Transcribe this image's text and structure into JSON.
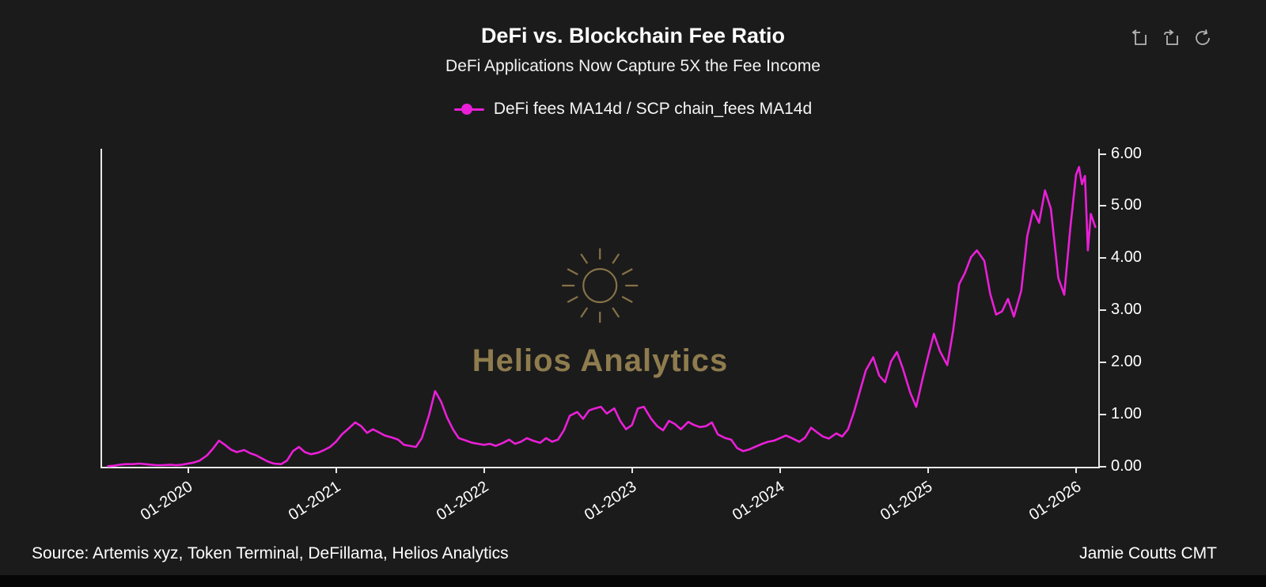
{
  "header": {
    "title": "DeFi vs. Blockchain Fee Ratio",
    "subtitle": "DeFi Applications Now Capture 5X the Fee Income"
  },
  "toolbar": {
    "icons": [
      "box-arrow-icon",
      "box-return-icon",
      "refresh-icon"
    ]
  },
  "legend": {
    "label": "DeFi fees MA14d / SCP chain_fees MA14d",
    "color": "#ea1fd8"
  },
  "watermark": {
    "text": "Helios Analytics",
    "color": "#8f7c4e"
  },
  "footer": {
    "source": "Source: Artemis xyz, Token Terminal, DeFillama, Helios Analytics",
    "credit": "Jamie Coutts CMT"
  },
  "chart_data": {
    "type": "line",
    "title": "DeFi vs. Blockchain Fee Ratio",
    "subtitle": "DeFi Applications Now Capture 5X the Fee Income",
    "series_name": "DeFi fees MA14d / SCP chain_fees MA14d",
    "line_color": "#ea1fd8",
    "legend_position": "top-center",
    "grid": false,
    "y_axis_side": "right",
    "x_range": [
      2019.42,
      2026.15
    ],
    "y_range": [
      0,
      6.1
    ],
    "y_ticks": [
      {
        "label": "0.00",
        "v": 0
      },
      {
        "label": "1.00",
        "v": 1
      },
      {
        "label": "2.00",
        "v": 2
      },
      {
        "label": "3.00",
        "v": 3
      },
      {
        "label": "4.00",
        "v": 4
      },
      {
        "label": "5.00",
        "v": 5
      },
      {
        "label": "6.00",
        "v": 6
      }
    ],
    "x_ticks": [
      {
        "label": "01-2020",
        "v": 2020
      },
      {
        "label": "01-2021",
        "v": 2021
      },
      {
        "label": "01-2022",
        "v": 2022
      },
      {
        "label": "01-2023",
        "v": 2023
      },
      {
        "label": "01-2024",
        "v": 2024
      },
      {
        "label": "01-2025",
        "v": 2025
      },
      {
        "label": "01-2026",
        "v": 2026
      }
    ],
    "points": [
      [
        2019.46,
        0.01
      ],
      [
        2019.5,
        0.02
      ],
      [
        2019.54,
        0.04
      ],
      [
        2019.58,
        0.05
      ],
      [
        2019.63,
        0.05
      ],
      [
        2019.67,
        0.06
      ],
      [
        2019.71,
        0.05
      ],
      [
        2019.75,
        0.04
      ],
      [
        2019.79,
        0.03
      ],
      [
        2019.83,
        0.03
      ],
      [
        2019.88,
        0.04
      ],
      [
        2019.92,
        0.03
      ],
      [
        2019.96,
        0.04
      ],
      [
        2020.0,
        0.06
      ],
      [
        2020.04,
        0.08
      ],
      [
        2020.08,
        0.12
      ],
      [
        2020.13,
        0.22
      ],
      [
        2020.17,
        0.35
      ],
      [
        2020.21,
        0.5
      ],
      [
        2020.25,
        0.42
      ],
      [
        2020.29,
        0.33
      ],
      [
        2020.33,
        0.28
      ],
      [
        2020.38,
        0.32
      ],
      [
        2020.42,
        0.26
      ],
      [
        2020.46,
        0.22
      ],
      [
        2020.5,
        0.16
      ],
      [
        2020.54,
        0.1
      ],
      [
        2020.58,
        0.06
      ],
      [
        2020.63,
        0.05
      ],
      [
        2020.67,
        0.12
      ],
      [
        2020.71,
        0.3
      ],
      [
        2020.75,
        0.38
      ],
      [
        2020.79,
        0.28
      ],
      [
        2020.83,
        0.24
      ],
      [
        2020.88,
        0.27
      ],
      [
        2020.92,
        0.32
      ],
      [
        2020.96,
        0.38
      ],
      [
        2021.0,
        0.48
      ],
      [
        2021.04,
        0.62
      ],
      [
        2021.08,
        0.72
      ],
      [
        2021.13,
        0.85
      ],
      [
        2021.17,
        0.78
      ],
      [
        2021.21,
        0.65
      ],
      [
        2021.25,
        0.72
      ],
      [
        2021.29,
        0.66
      ],
      [
        2021.33,
        0.6
      ],
      [
        2021.38,
        0.56
      ],
      [
        2021.42,
        0.52
      ],
      [
        2021.46,
        0.42
      ],
      [
        2021.5,
        0.4
      ],
      [
        2021.54,
        0.38
      ],
      [
        2021.58,
        0.55
      ],
      [
        2021.63,
        1.0
      ],
      [
        2021.67,
        1.45
      ],
      [
        2021.71,
        1.25
      ],
      [
        2021.75,
        0.95
      ],
      [
        2021.79,
        0.72
      ],
      [
        2021.83,
        0.55
      ],
      [
        2021.88,
        0.5
      ],
      [
        2021.92,
        0.46
      ],
      [
        2021.96,
        0.44
      ],
      [
        2022.0,
        0.42
      ],
      [
        2022.04,
        0.44
      ],
      [
        2022.08,
        0.4
      ],
      [
        2022.13,
        0.46
      ],
      [
        2022.17,
        0.52
      ],
      [
        2022.21,
        0.44
      ],
      [
        2022.25,
        0.48
      ],
      [
        2022.29,
        0.55
      ],
      [
        2022.33,
        0.5
      ],
      [
        2022.38,
        0.46
      ],
      [
        2022.42,
        0.55
      ],
      [
        2022.46,
        0.48
      ],
      [
        2022.5,
        0.52
      ],
      [
        2022.54,
        0.7
      ],
      [
        2022.58,
        0.98
      ],
      [
        2022.63,
        1.05
      ],
      [
        2022.67,
        0.92
      ],
      [
        2022.71,
        1.08
      ],
      [
        2022.75,
        1.12
      ],
      [
        2022.79,
        1.15
      ],
      [
        2022.83,
        1.02
      ],
      [
        2022.88,
        1.12
      ],
      [
        2022.92,
        0.88
      ],
      [
        2022.96,
        0.72
      ],
      [
        2023.0,
        0.8
      ],
      [
        2023.04,
        1.12
      ],
      [
        2023.08,
        1.15
      ],
      [
        2023.13,
        0.92
      ],
      [
        2023.17,
        0.78
      ],
      [
        2023.21,
        0.7
      ],
      [
        2023.25,
        0.88
      ],
      [
        2023.29,
        0.82
      ],
      [
        2023.33,
        0.72
      ],
      [
        2023.38,
        0.86
      ],
      [
        2023.42,
        0.8
      ],
      [
        2023.46,
        0.76
      ],
      [
        2023.5,
        0.78
      ],
      [
        2023.54,
        0.85
      ],
      [
        2023.58,
        0.62
      ],
      [
        2023.63,
        0.55
      ],
      [
        2023.67,
        0.52
      ],
      [
        2023.71,
        0.36
      ],
      [
        2023.75,
        0.3
      ],
      [
        2023.79,
        0.33
      ],
      [
        2023.83,
        0.38
      ],
      [
        2023.88,
        0.44
      ],
      [
        2023.92,
        0.48
      ],
      [
        2023.96,
        0.5
      ],
      [
        2024.0,
        0.55
      ],
      [
        2024.04,
        0.6
      ],
      [
        2024.08,
        0.55
      ],
      [
        2024.13,
        0.48
      ],
      [
        2024.17,
        0.56
      ],
      [
        2024.21,
        0.75
      ],
      [
        2024.25,
        0.66
      ],
      [
        2024.29,
        0.58
      ],
      [
        2024.33,
        0.54
      ],
      [
        2024.38,
        0.64
      ],
      [
        2024.42,
        0.58
      ],
      [
        2024.46,
        0.72
      ],
      [
        2024.5,
        1.05
      ],
      [
        2024.54,
        1.45
      ],
      [
        2024.58,
        1.85
      ],
      [
        2024.63,
        2.1
      ],
      [
        2024.67,
        1.75
      ],
      [
        2024.71,
        1.62
      ],
      [
        2024.75,
        2.02
      ],
      [
        2024.79,
        2.2
      ],
      [
        2024.83,
        1.88
      ],
      [
        2024.88,
        1.42
      ],
      [
        2024.92,
        1.15
      ],
      [
        2024.96,
        1.65
      ],
      [
        2025.0,
        2.12
      ],
      [
        2025.04,
        2.55
      ],
      [
        2025.08,
        2.22
      ],
      [
        2025.13,
        1.95
      ],
      [
        2025.17,
        2.62
      ],
      [
        2025.21,
        3.5
      ],
      [
        2025.25,
        3.72
      ],
      [
        2025.29,
        4.02
      ],
      [
        2025.33,
        4.15
      ],
      [
        2025.38,
        3.95
      ],
      [
        2025.42,
        3.32
      ],
      [
        2025.46,
        2.92
      ],
      [
        2025.5,
        2.98
      ],
      [
        2025.54,
        3.22
      ],
      [
        2025.58,
        2.88
      ],
      [
        2025.63,
        3.38
      ],
      [
        2025.67,
        4.42
      ],
      [
        2025.71,
        4.92
      ],
      [
        2025.75,
        4.68
      ],
      [
        2025.79,
        5.3
      ],
      [
        2025.83,
        4.95
      ],
      [
        2025.88,
        3.62
      ],
      [
        2025.92,
        3.3
      ],
      [
        2025.96,
        4.55
      ],
      [
        2026.0,
        5.6
      ],
      [
        2026.02,
        5.75
      ],
      [
        2026.04,
        5.42
      ],
      [
        2026.06,
        5.58
      ],
      [
        2026.08,
        4.15
      ],
      [
        2026.1,
        4.85
      ],
      [
        2026.13,
        4.6
      ]
    ]
  }
}
